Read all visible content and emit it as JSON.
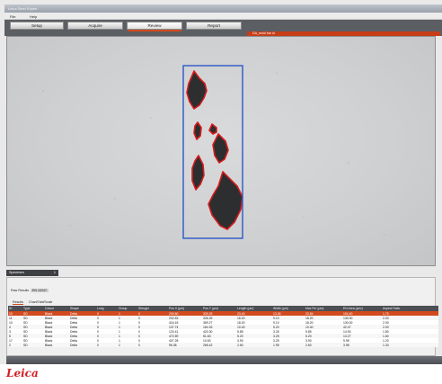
{
  "window": {
    "title": "Leica Steel Expert"
  },
  "menu": {
    "file": "File",
    "help": "Help"
  },
  "tabs": [
    {
      "label": "Setup"
    },
    {
      "label": "Acquire"
    },
    {
      "label": "Review"
    },
    {
      "label": "Report"
    }
  ],
  "active_tab": "Review",
  "image_label": "DA_mold bar id",
  "specimen_panel": {
    "title": "Specimen",
    "control": "1"
  },
  "result_tabs": [
    "Raw Results",
    "EN 10247"
  ],
  "view_tabs": [
    "Results",
    "Chart/Tabl/Scale"
  ],
  "table": {
    "columns": [
      "ID",
      "Type",
      "Colour",
      "Shape",
      "Long",
      "Group",
      "Stringer",
      "Pos X (µm)",
      "Pos Y (µm)",
      "Length (µm)",
      "Width (µm)",
      "Max Fer (µm)",
      "EN Area (µm²)",
      "Aspect Ratio"
    ],
    "rows": [
      [
        "15",
        "SD",
        "Black",
        "Delta",
        "0",
        "1",
        "0",
        "209.80",
        "339.25",
        "23.40",
        "13.36",
        "23.84",
        "154.40",
        "1.75"
      ],
      [
        "11",
        "SD",
        "Black",
        "Delta",
        "0",
        "1",
        "0",
        "202.53",
        "326.25",
        "18.20",
        "9.10",
        "18.20",
        "130.00",
        "2.00"
      ],
      [
        "10",
        "SD",
        "Black",
        "Delta",
        "0",
        "1",
        "0",
        "416.18",
        "369.27",
        "18.20",
        "9.10",
        "18.20",
        "130.00",
        "2.00"
      ],
      [
        "4",
        "SD",
        "Black",
        "Delta",
        "0",
        "1",
        "0",
        "137.74",
        "164.33",
        "10.40",
        "5.20",
        "10.40",
        "42.47",
        "2.00"
      ],
      [
        "3",
        "SD",
        "Black",
        "Delta",
        "0",
        "1",
        "0",
        "120.41",
        "420.30",
        "5.85",
        "3.25",
        "5.85",
        "14.93",
        "1.80"
      ],
      [
        "5",
        "SD",
        "Black",
        "Delta",
        "0",
        "1",
        "0",
        "472.59",
        "51.63",
        "5.20",
        "3.25",
        "5.20",
        "13.27",
        "1.60"
      ],
      [
        "17",
        "SD",
        "Black",
        "Delta",
        "0",
        "1",
        "0",
        "407.28",
        "10.63",
        "3.90",
        "3.25",
        "3.90",
        "9.95",
        "1.20"
      ],
      [
        "2",
        "SD",
        "Black",
        "Delta",
        "0",
        "1",
        "0",
        "96.38",
        "265.42",
        "2.60",
        "1.95",
        "2.60",
        "3.98",
        "1.33"
      ]
    ]
  },
  "brand": {
    "logo_text": "Leica"
  },
  "colors": {
    "accent": "#d24a1e",
    "selection_box": "#2a59c7",
    "outline": "#d61c1c"
  }
}
